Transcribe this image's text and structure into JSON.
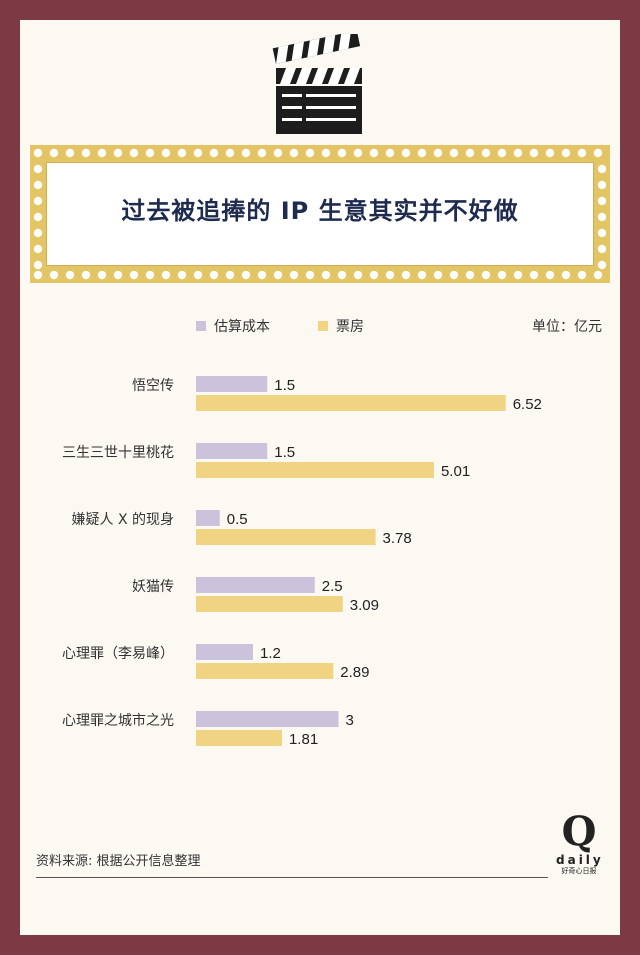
{
  "header": {
    "title": "过去被追捧的 IP 生意其实并不好做"
  },
  "legend": {
    "cost_label": "估算成本",
    "box_label": "票房"
  },
  "unit": "单位：亿元",
  "colors": {
    "cost": "#cbc2db",
    "box": "#f0d483",
    "accent": "#e3c565",
    "background": "#fbf9f2",
    "frame": "#7d3a44"
  },
  "chart_data": {
    "type": "bar",
    "orientation": "horizontal",
    "categories": [
      "悟空传",
      "三生三世十里桃花",
      "嫌疑人 X 的现身",
      "妖猫传",
      "心理罪（李易峰）",
      "心理罪之城市之光"
    ],
    "series": [
      {
        "name": "估算成本",
        "values": [
          1.5,
          1.5,
          0.5,
          2.5,
          1.2,
          3
        ],
        "labels": [
          "1.5",
          "1.5",
          "0.5",
          "2.5",
          "1.2",
          "3"
        ]
      },
      {
        "name": "票房",
        "values": [
          6.52,
          5.01,
          3.78,
          3.09,
          2.89,
          1.81
        ],
        "labels": [
          "6.52",
          "5.01",
          "3.78",
          "3.09",
          "2.89",
          "1.81"
        ]
      }
    ],
    "unit": "单位：亿元",
    "xlim": [
      0,
      7
    ],
    "grid": false,
    "legend_position": "top-left"
  },
  "footer": {
    "source": "资料来源: 根据公开信息整理"
  },
  "logo": {
    "letter": "Q",
    "word": "daily",
    "tagline": "好奇心日报"
  }
}
